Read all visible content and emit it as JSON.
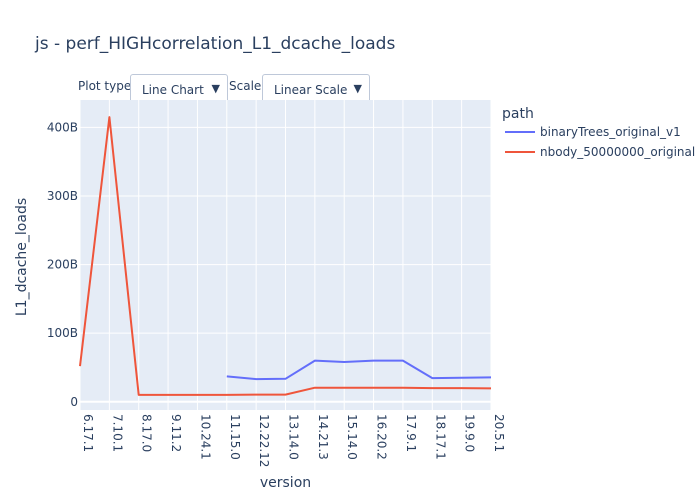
{
  "title": "js - perf_HIGHcorrelation_L1_dcache_loads",
  "controls": {
    "plot_type_label": "Plot type:",
    "plot_type_value": "Line Chart",
    "scale_label": "Scale:",
    "scale_value": "Linear Scale",
    "arrow": "▼"
  },
  "colors": {
    "plot_bg": "#e5ecf6",
    "grid": "#ffffff"
  },
  "chart_data": {
    "type": "line",
    "xlabel": "version",
    "ylabel": "L1_dcache_loads",
    "categories": [
      "6.17.1",
      "7.10.1",
      "8.17.0",
      "9.11.2",
      "10.24.1",
      "11.15.0",
      "12.22.12",
      "13.14.0",
      "14.21.3",
      "15.14.0",
      "16.20.2",
      "17.9.1",
      "18.17.1",
      "19.9.0",
      "20.5.1"
    ],
    "yticks": [
      0,
      100,
      200,
      300,
      400
    ],
    "ytick_labels": [
      "0",
      "100B",
      "200B",
      "300B",
      "400B"
    ],
    "ylim": [
      -12,
      440
    ],
    "unit": "billions",
    "legend": {
      "title": "path",
      "placement": "top-right outside"
    },
    "grid": true,
    "series": [
      {
        "name": "binaryTrees_original_v1",
        "color": "#636efa",
        "values": [
          null,
          null,
          null,
          null,
          null,
          37,
          33,
          33.5,
          60,
          58,
          60,
          60,
          34.5,
          35,
          35.5
        ]
      },
      {
        "name": "nbody_50000000_original",
        "color": "#ef553b",
        "values": [
          52,
          415,
          10,
          10,
          10,
          10,
          10.5,
          10.5,
          20.5,
          20.5,
          20.5,
          20.5,
          20,
          20,
          19.5
        ]
      }
    ]
  }
}
